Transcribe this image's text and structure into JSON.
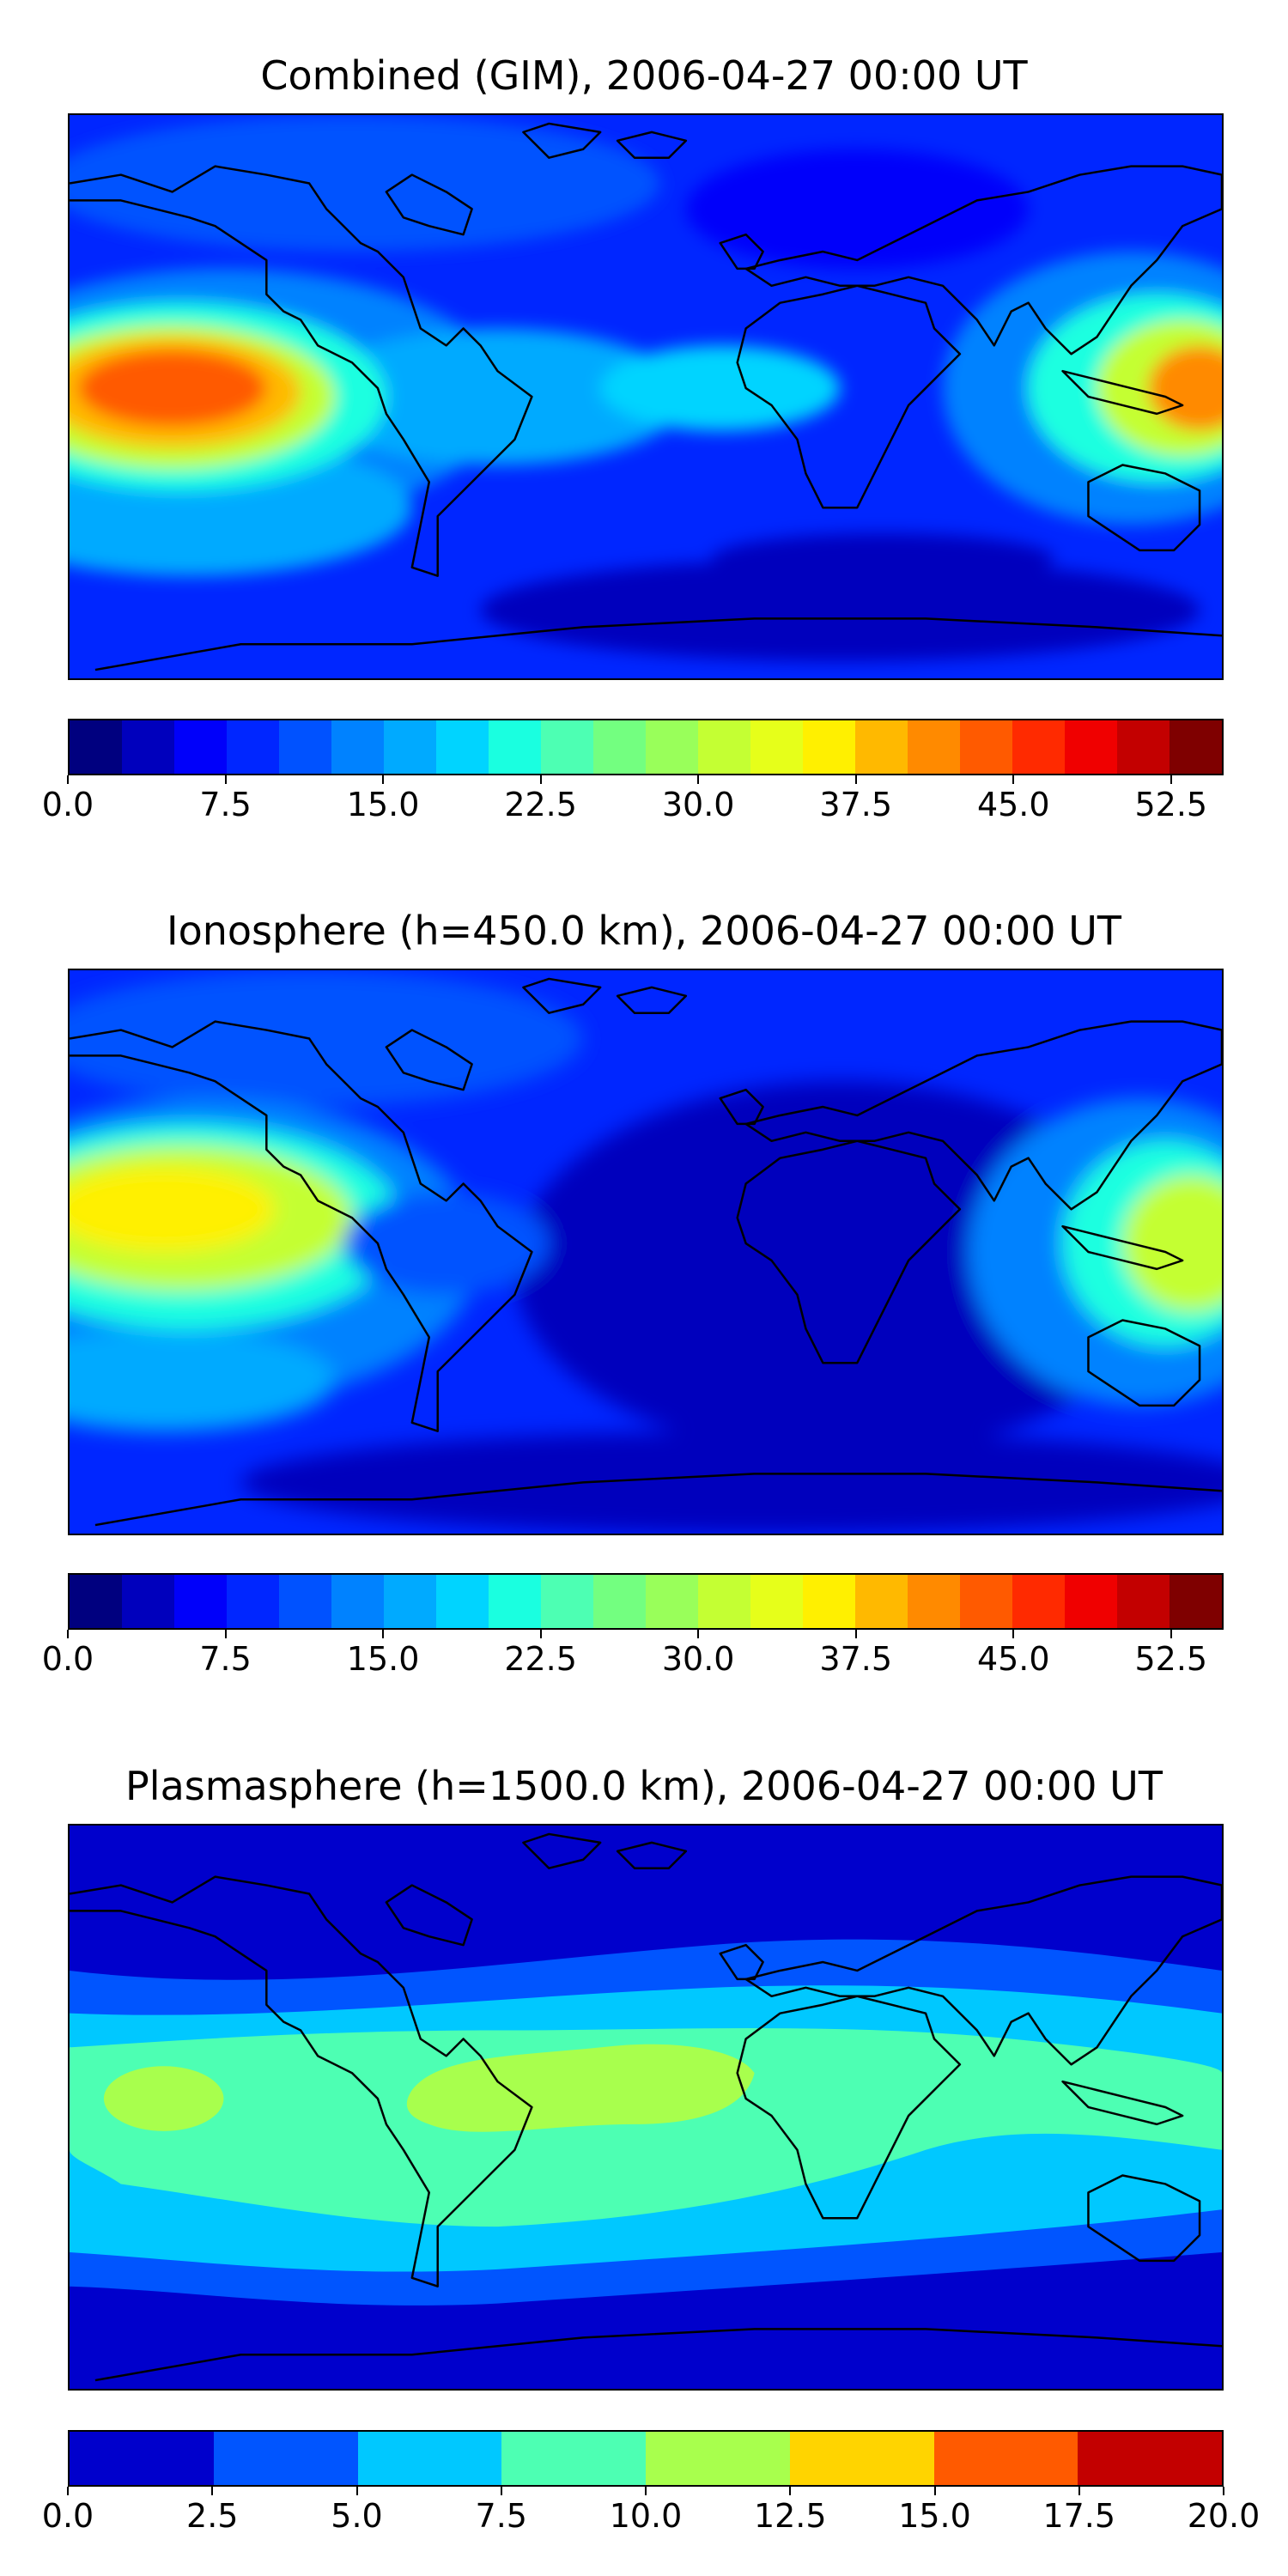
{
  "panels": [
    {
      "title": "Combined (GIM), 2006-04-27 00:00 UT",
      "colorbar": {
        "min": 0,
        "max": 55,
        "step": 2.5,
        "ticks": [
          "0.0",
          "7.5",
          "15.0",
          "22.5",
          "30.0",
          "37.5",
          "45.0",
          "52.5"
        ],
        "tick_values": [
          0,
          7.5,
          15,
          22.5,
          30,
          37.5,
          45,
          52.5
        ]
      }
    },
    {
      "title": "Ionosphere  (h=450.0 km), 2006-04-27 00:00 UT",
      "colorbar": {
        "min": 0,
        "max": 55,
        "step": 2.5,
        "ticks": [
          "0.0",
          "7.5",
          "15.0",
          "22.5",
          "30.0",
          "37.5",
          "45.0",
          "52.5"
        ],
        "tick_values": [
          0,
          7.5,
          15,
          22.5,
          30,
          37.5,
          45,
          52.5
        ]
      }
    },
    {
      "title": "Plasmasphere (h=1500.0 km), 2006-04-27 00:00 UT",
      "colorbar": {
        "min": 0,
        "max": 20,
        "step": 2.5,
        "ticks": [
          "0.0",
          "2.5",
          "5.0",
          "7.5",
          "10.0",
          "12.5",
          "15.0",
          "17.5",
          "20.0"
        ],
        "tick_values": [
          0,
          2.5,
          5,
          7.5,
          10,
          12.5,
          15,
          17.5,
          20
        ]
      }
    }
  ],
  "colors": {
    "jet22": [
      "#00007f",
      "#0000bd",
      "#0000fa",
      "#0026ff",
      "#0052ff",
      "#0082ff",
      "#00aaff",
      "#00d4ff",
      "#1affe0",
      "#4dffb3",
      "#73ff80",
      "#99ff5a",
      "#c4ff33",
      "#e6ff1a",
      "#fff000",
      "#ffb900",
      "#ff8a00",
      "#ff5a00",
      "#ff2a00",
      "#f00000",
      "#c30000",
      "#7f0000"
    ],
    "jet8": [
      "#0000cc",
      "#0055ff",
      "#00c8ff",
      "#4dffb3",
      "#a8ff4d",
      "#ffd400",
      "#ff5a00",
      "#c30000"
    ],
    "coastline": "#000000"
  }
}
